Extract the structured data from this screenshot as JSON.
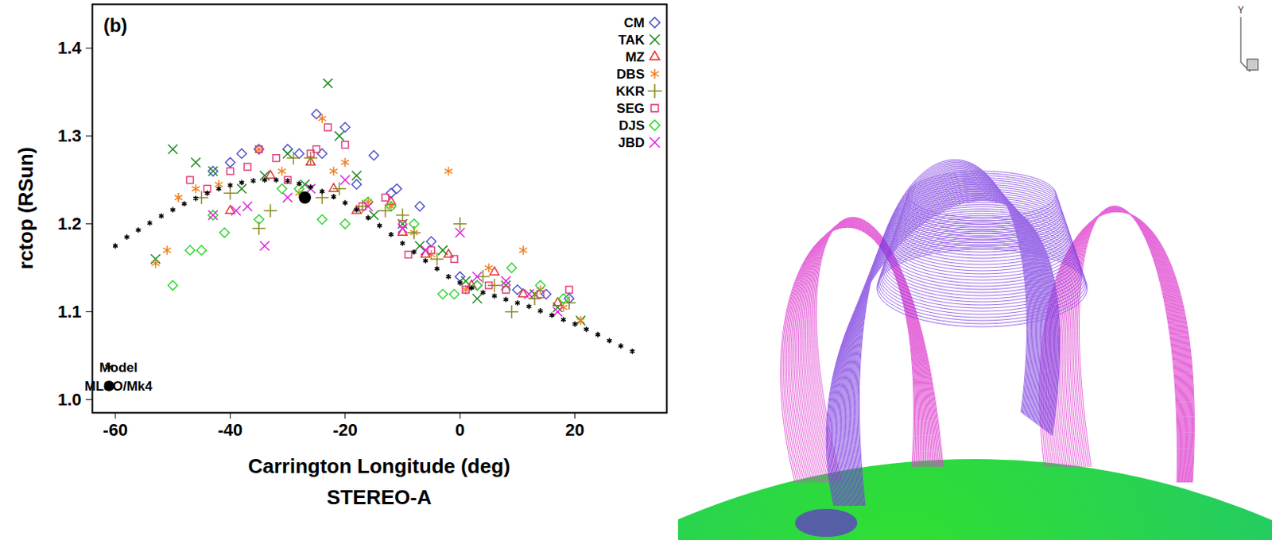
{
  "chart_data": {
    "type": "scatter",
    "panel_label": "(b)",
    "xlabel": "Carrington Longitude (deg)",
    "caption": "STEREO-A",
    "ylabel": "rctop (RSun)",
    "xlim": [
      -64,
      36
    ],
    "xticks": [
      -60,
      -40,
      -20,
      0,
      20
    ],
    "ylim": [
      0.985,
      1.45
    ],
    "yticks": [
      {
        "value": 1,
        "label": "1.0"
      },
      1.1,
      1.2,
      1.3,
      1.4
    ],
    "legend": "top-right",
    "series": [
      {
        "name": "CM",
        "color": "#5050d0",
        "marker": "diamond",
        "x": [
          -43,
          -40,
          -38,
          -35,
          -30,
          -28,
          -25,
          -24,
          -20,
          -18,
          -15,
          -12,
          -11,
          -7,
          -5,
          0,
          3,
          10,
          15,
          19
        ],
        "values": [
          1.26,
          1.27,
          1.28,
          1.285,
          1.285,
          1.28,
          1.325,
          1.28,
          1.31,
          1.245,
          1.278,
          1.235,
          1.24,
          1.22,
          1.18,
          1.14,
          1.13,
          1.125,
          1.12,
          1.115
        ]
      },
      {
        "name": "TAK",
        "color": "#1a8a1a",
        "marker": "x",
        "x": [
          -53,
          -50,
          -46,
          -43,
          -38,
          -34,
          -30,
          -27,
          -23,
          -21,
          -18,
          -15,
          -10,
          -7,
          -3,
          1,
          3,
          8,
          13,
          17,
          21
        ],
        "values": [
          1.16,
          1.285,
          1.27,
          1.26,
          1.24,
          1.255,
          1.28,
          1.245,
          1.36,
          1.3,
          1.255,
          1.21,
          1.2,
          1.175,
          1.17,
          1.135,
          1.115,
          1.13,
          1.12,
          1.105,
          1.09
        ]
      },
      {
        "name": "MZ",
        "color": "#e03030",
        "marker": "triangle",
        "x": [
          -40,
          -33,
          -26,
          -22,
          -18,
          -12,
          -10,
          -6,
          -2,
          2,
          6,
          11,
          17
        ],
        "values": [
          1.215,
          1.255,
          1.27,
          1.24,
          1.215,
          1.225,
          1.19,
          1.165,
          1.165,
          1.13,
          1.145,
          1.12,
          1.11
        ]
      },
      {
        "name": "DBS",
        "color": "#f08020",
        "marker": "asterisk",
        "x": [
          -53,
          -51,
          -49,
          -46,
          -42,
          -35,
          -31,
          -28,
          -24,
          -22,
          -20,
          -16,
          -12,
          -8,
          -5,
          -2,
          1,
          5,
          11,
          14,
          18,
          21
        ],
        "values": [
          1.155,
          1.17,
          1.23,
          1.24,
          1.245,
          1.285,
          1.26,
          1.235,
          1.32,
          1.26,
          1.27,
          1.225,
          1.22,
          1.19,
          1.165,
          1.26,
          1.125,
          1.15,
          1.17,
          1.125,
          1.105,
          1.09
        ]
      },
      {
        "name": "KKR",
        "color": "#8a8a20",
        "marker": "plus",
        "x": [
          -45,
          -40,
          -35,
          -33,
          -29,
          -26,
          -24,
          -21,
          -17,
          -13,
          -10,
          -8,
          -4,
          0,
          4,
          6,
          9,
          13,
          19
        ],
        "values": [
          1.23,
          1.235,
          1.195,
          1.215,
          1.275,
          1.275,
          1.23,
          1.24,
          1.22,
          1.215,
          1.21,
          1.19,
          1.16,
          1.2,
          1.14,
          1.13,
          1.1,
          1.115,
          1.11
        ]
      },
      {
        "name": "SEG",
        "color": "#e0407a",
        "marker": "square",
        "x": [
          -47,
          -44,
          -40,
          -37,
          -35,
          -32,
          -30,
          -26,
          -25,
          -23,
          -20,
          -17,
          -13,
          -10,
          -9,
          -5,
          -1,
          1,
          5,
          8,
          14,
          19
        ],
        "values": [
          1.25,
          1.24,
          1.26,
          1.265,
          1.285,
          1.275,
          1.25,
          1.28,
          1.285,
          1.31,
          1.29,
          1.22,
          1.23,
          1.2,
          1.165,
          1.17,
          1.16,
          1.125,
          1.13,
          1.125,
          1.12,
          1.125
        ]
      },
      {
        "name": "DJS",
        "color": "#33d633",
        "marker": "diamond",
        "x": [
          -50,
          -47,
          -45,
          -43,
          -41,
          -35,
          -31,
          -28,
          -24,
          -20,
          -16,
          -12,
          -8,
          -3,
          -1,
          3,
          9,
          14,
          18
        ],
        "values": [
          1.13,
          1.17,
          1.17,
          1.21,
          1.19,
          1.205,
          1.24,
          1.24,
          1.205,
          1.2,
          1.225,
          1.22,
          1.2,
          1.12,
          1.12,
          1.13,
          1.15,
          1.13,
          1.115
        ]
      },
      {
        "name": "JBD",
        "color": "#e020e0",
        "marker": "x",
        "x": [
          -43,
          -39,
          -37,
          -34,
          -30,
          -26,
          -20,
          -16,
          -10,
          -6,
          0,
          3,
          8,
          12,
          17
        ],
        "values": [
          1.21,
          1.215,
          1.22,
          1.175,
          1.23,
          1.24,
          1.25,
          1.22,
          1.195,
          1.17,
          1.19,
          1.14,
          1.135,
          1.12,
          1.1
        ]
      },
      {
        "name": "Model",
        "color": "#000000",
        "marker": "asterisk",
        "x": [
          -60,
          -58,
          -56,
          -54,
          -52,
          -50,
          -48,
          -46,
          -44,
          -42,
          -40,
          -38,
          -36,
          -34,
          -32,
          -30,
          -28,
          -26,
          -24,
          -22,
          -20,
          -18,
          -16,
          -14,
          -12,
          -10,
          -8,
          -6,
          -4,
          -2,
          0,
          2,
          4,
          6,
          8,
          10,
          12,
          14,
          16,
          18,
          20,
          22,
          24,
          26,
          28,
          30
        ],
        "values": [
          1.175,
          1.185,
          1.193,
          1.201,
          1.209,
          1.216,
          1.223,
          1.229,
          1.235,
          1.24,
          1.244,
          1.247,
          1.249,
          1.25,
          1.25,
          1.249,
          1.246,
          1.242,
          1.237,
          1.231,
          1.224,
          1.216,
          1.207,
          1.198,
          1.188,
          1.178,
          1.168,
          1.158,
          1.149,
          1.14,
          1.133,
          1.127,
          1.122,
          1.118,
          1.114,
          1.11,
          1.106,
          1.101,
          1.096,
          1.091,
          1.086,
          1.08,
          1.074,
          1.067,
          1.061,
          1.055
        ]
      },
      {
        "name": "MLSO/Mk4",
        "color": "#000000",
        "marker": "circle",
        "x": [
          -27
        ],
        "values": [
          1.23
        ]
      }
    ]
  },
  "illustration": {
    "axis_label": "Y"
  }
}
